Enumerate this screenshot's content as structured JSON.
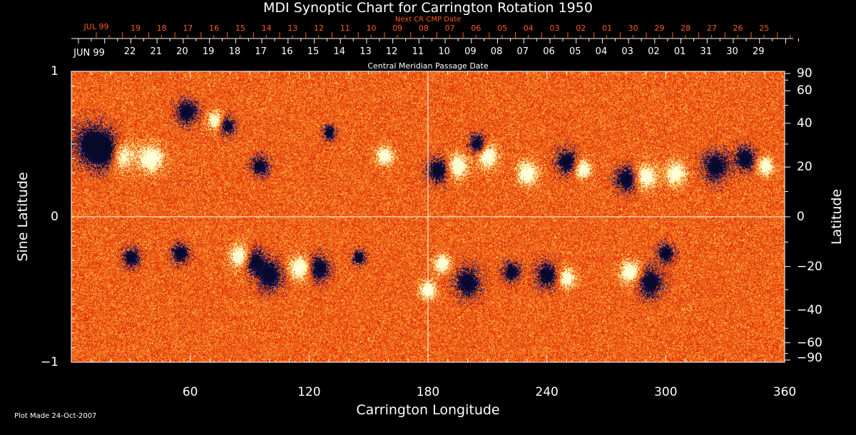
{
  "chart_data": {
    "type": "heatmap",
    "title": "MDI Synoptic Chart for Carrington Rotation 1950",
    "xlabel": "Carrington Longitude",
    "ylabel": "Sine Latitude",
    "ylabel_right": "Latitude",
    "xlim": [
      0,
      360
    ],
    "ylim": [
      -1,
      1
    ],
    "x_ticks": [
      "60",
      "120",
      "180",
      "240",
      "300",
      "360"
    ],
    "y_ticks_left": [
      "1",
      "0",
      "−1"
    ],
    "y_ticks_right": [
      "90",
      "60",
      "40",
      "20",
      "0",
      "−20",
      "−40",
      "−60",
      "−90"
    ],
    "top_axis_label": "Central Meridian Passage Date",
    "top_axis_month": "JUN 99",
    "top_axis_dates": [
      "22",
      "21",
      "20",
      "19",
      "18",
      "17",
      "16",
      "15",
      "14",
      "13",
      "12",
      "11",
      "10",
      "09",
      "08",
      "07",
      "06",
      "05",
      "04",
      "03",
      "02",
      "01",
      "31",
      "30",
      "29"
    ],
    "next_cr_label": "Next CR CMP Date",
    "next_cr_month": "JUL 99",
    "next_cr_dates": [
      "19",
      "18",
      "17",
      "16",
      "15",
      "14",
      "13",
      "12",
      "11",
      "10",
      "09",
      "08",
      "07",
      "06",
      "05",
      "04",
      "03",
      "02",
      "01",
      "30",
      "29",
      "28",
      "27",
      "26",
      "25"
    ],
    "colors": {
      "background_field": "#e8501a",
      "positive": "#ffffff",
      "negative": "#0a0a3a",
      "annotation": "#ff5a1a"
    }
  },
  "footer": {
    "plot_made": "Plot Made 24-Oct-2007"
  }
}
